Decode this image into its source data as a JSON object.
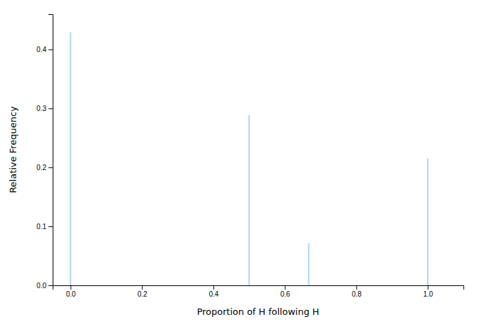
{
  "chart_data": {
    "type": "vlines",
    "x": [
      0.0,
      0.5,
      0.6667,
      1.0
    ],
    "values": [
      0.4291,
      0.2882,
      0.0716,
      0.2151
    ],
    "color": "#add8e6",
    "xlabel": "Proportion of H following H",
    "ylabel": "Relative Frequency",
    "xlim": [
      -0.05,
      1.1
    ],
    "ylim": [
      0.0,
      0.46
    ],
    "xticks": [
      {
        "value": 0.0,
        "label": "0.0"
      },
      0.2,
      0.4,
      0.6,
      0.8,
      {
        "value": 1.0,
        "label": "1.0"
      }
    ],
    "yticks": [
      {
        "value": 0.0,
        "label": "0.0"
      },
      0.1,
      0.2,
      0.3,
      0.4
    ]
  }
}
